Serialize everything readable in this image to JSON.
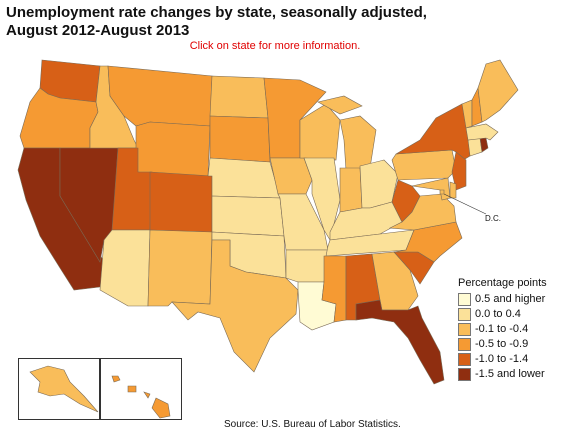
{
  "title": {
    "line1": "Unemployment rate changes by state, seasonally adjusted,",
    "line2": "August 2012-August 2013"
  },
  "instruction": "Click on state for more information.",
  "dc_label": "D.C.",
  "source": "Source:  U.S. Bureau of Labor Statistics.",
  "legend": {
    "title": "Percentage points",
    "items": [
      {
        "label": "0.5 and higher",
        "color": "#fffbd4"
      },
      {
        "label": "0.0 to 0.4",
        "color": "#fbe199"
      },
      {
        "label": "-0.1 to -0.4",
        "color": "#f9bd5a"
      },
      {
        "label": "-0.5 to -0.9",
        "color": "#f59a33"
      },
      {
        "label": "-1.0 to -1.4",
        "color": "#d76017"
      },
      {
        "label": "-1.5 and lower",
        "color": "#8f2e10"
      }
    ]
  },
  "map_data": {
    "classes": [
      "0.5 and higher",
      "0.0 to 0.4",
      "-0.1 to -0.4",
      "-0.5 to -0.9",
      "-1.0 to -1.4",
      "-1.5 and lower"
    ],
    "states": {
      "WA": 4,
      "OR": 3,
      "CA": 5,
      "NV": 5,
      "ID": 2,
      "MT": 3,
      "WY": 3,
      "UT": 4,
      "AZ": 1,
      "CO": 4,
      "NM": 2,
      "ND": 2,
      "SD": 3,
      "NE": 1,
      "KS": 1,
      "OK": 1,
      "TX": 2,
      "MN": 3,
      "IA": 2,
      "MO": 1,
      "AR": 1,
      "LA": 0,
      "WI": 2,
      "IL": 1,
      "MI": 2,
      "IN": 2,
      "OH": 1,
      "KY": 1,
      "TN": 1,
      "MS": 3,
      "AL": 4,
      "GA": 2,
      "FL": 5,
      "SC": 4,
      "NC": 3,
      "VA": 2,
      "WV": 4,
      "PA": 2,
      "NY": 4,
      "NJ": 4,
      "DE": 2,
      "MD": 2,
      "DC": 2,
      "CT": 1,
      "RI": 5,
      "MA": 1,
      "VT": 2,
      "NH": 3,
      "ME": 2,
      "AK": 2,
      "HI": 3
    }
  }
}
